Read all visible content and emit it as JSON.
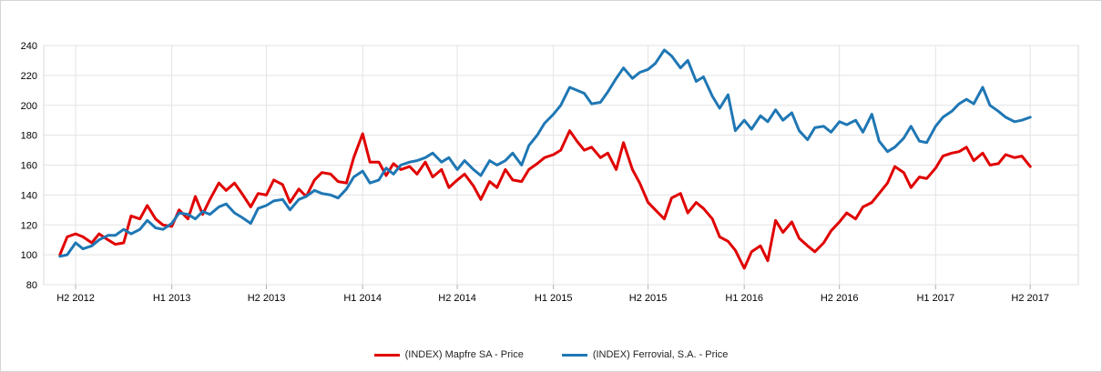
{
  "colors": {
    "series_0": "#e00000",
    "series_1": "#1f77b4",
    "grid": "#e3e3e3",
    "axis": "#b0b0b0"
  },
  "chart_data": {
    "type": "line",
    "title": "",
    "xlabel": "",
    "ylabel": "",
    "ylim": [
      80,
      240
    ],
    "yticks": [
      80,
      100,
      120,
      140,
      160,
      180,
      200,
      220,
      240
    ],
    "xlim": [
      "2012-05-01",
      "2017-10-01"
    ],
    "grid": true,
    "legend": "bottom-center",
    "xticks": [
      {
        "date": "2012-07-01",
        "label": "H2 2012"
      },
      {
        "date": "2013-01-01",
        "label": "H1 2013"
      },
      {
        "date": "2013-07-01",
        "label": "H2 2013"
      },
      {
        "date": "2014-01-01",
        "label": "H1 2014"
      },
      {
        "date": "2014-07-01",
        "label": "H2 2014"
      },
      {
        "date": "2015-01-01",
        "label": "H1 2015"
      },
      {
        "date": "2015-07-01",
        "label": "H2 2015"
      },
      {
        "date": "2016-01-01",
        "label": "H1 2016"
      },
      {
        "date": "2016-07-01",
        "label": "H2 2016"
      },
      {
        "date": "2017-01-01",
        "label": "H1 2017"
      },
      {
        "date": "2017-07-01",
        "label": "H2 2017"
      }
    ],
    "series": [
      {
        "name": "(INDEX) Mapfre SA - Price",
        "color": "#e00000",
        "points": [
          [
            "2012-06-01",
            100
          ],
          [
            "2012-06-15",
            112
          ],
          [
            "2012-07-01",
            114
          ],
          [
            "2012-07-15",
            112
          ],
          [
            "2012-08-01",
            108
          ],
          [
            "2012-08-15",
            114
          ],
          [
            "2012-09-01",
            110
          ],
          [
            "2012-09-15",
            107
          ],
          [
            "2012-10-01",
            108
          ],
          [
            "2012-10-15",
            126
          ],
          [
            "2012-11-01",
            124
          ],
          [
            "2012-11-15",
            133
          ],
          [
            "2012-12-01",
            124
          ],
          [
            "2012-12-15",
            120
          ],
          [
            "2013-01-01",
            119
          ],
          [
            "2013-01-15",
            130
          ],
          [
            "2013-02-01",
            124
          ],
          [
            "2013-02-15",
            139
          ],
          [
            "2013-03-01",
            127
          ],
          [
            "2013-03-15",
            137
          ],
          [
            "2013-04-01",
            148
          ],
          [
            "2013-04-15",
            143
          ],
          [
            "2013-05-01",
            148
          ],
          [
            "2013-05-15",
            141
          ],
          [
            "2013-06-01",
            132
          ],
          [
            "2013-06-15",
            141
          ],
          [
            "2013-07-01",
            140
          ],
          [
            "2013-07-15",
            150
          ],
          [
            "2013-08-01",
            147
          ],
          [
            "2013-08-15",
            135
          ],
          [
            "2013-09-01",
            144
          ],
          [
            "2013-09-15",
            139
          ],
          [
            "2013-10-01",
            150
          ],
          [
            "2013-10-15",
            155
          ],
          [
            "2013-11-01",
            154
          ],
          [
            "2013-11-15",
            149
          ],
          [
            "2013-12-01",
            148
          ],
          [
            "2013-12-15",
            165
          ],
          [
            "2014-01-01",
            181
          ],
          [
            "2014-01-15",
            162
          ],
          [
            "2014-02-01",
            162
          ],
          [
            "2014-02-15",
            153
          ],
          [
            "2014-03-01",
            161
          ],
          [
            "2014-03-15",
            157
          ],
          [
            "2014-04-01",
            159
          ],
          [
            "2014-04-15",
            154
          ],
          [
            "2014-05-01",
            162
          ],
          [
            "2014-05-15",
            152
          ],
          [
            "2014-06-01",
            157
          ],
          [
            "2014-06-15",
            145
          ],
          [
            "2014-07-01",
            150
          ],
          [
            "2014-07-15",
            154
          ],
          [
            "2014-08-01",
            146
          ],
          [
            "2014-08-15",
            137
          ],
          [
            "2014-09-01",
            149
          ],
          [
            "2014-09-15",
            145
          ],
          [
            "2014-10-01",
            157
          ],
          [
            "2014-10-15",
            150
          ],
          [
            "2014-11-01",
            149
          ],
          [
            "2014-11-15",
            157
          ],
          [
            "2014-12-01",
            161
          ],
          [
            "2014-12-15",
            165
          ],
          [
            "2015-01-01",
            167
          ],
          [
            "2015-01-15",
            170
          ],
          [
            "2015-02-01",
            183
          ],
          [
            "2015-02-15",
            176
          ],
          [
            "2015-03-01",
            170
          ],
          [
            "2015-03-15",
            172
          ],
          [
            "2015-04-01",
            165
          ],
          [
            "2015-04-15",
            168
          ],
          [
            "2015-05-01",
            157
          ],
          [
            "2015-05-15",
            175
          ],
          [
            "2015-06-01",
            157
          ],
          [
            "2015-06-15",
            148
          ],
          [
            "2015-07-01",
            135
          ],
          [
            "2015-07-15",
            130
          ],
          [
            "2015-08-01",
            124
          ],
          [
            "2015-08-15",
            138
          ],
          [
            "2015-09-01",
            141
          ],
          [
            "2015-09-15",
            128
          ],
          [
            "2015-10-01",
            135
          ],
          [
            "2015-10-15",
            131
          ],
          [
            "2015-11-01",
            124
          ],
          [
            "2015-11-15",
            112
          ],
          [
            "2015-12-01",
            109
          ],
          [
            "2015-12-15",
            103
          ],
          [
            "2016-01-01",
            91
          ],
          [
            "2016-01-15",
            102
          ],
          [
            "2016-02-01",
            106
          ],
          [
            "2016-02-15",
            96
          ],
          [
            "2016-03-01",
            123
          ],
          [
            "2016-03-15",
            115
          ],
          [
            "2016-04-01",
            122
          ],
          [
            "2016-04-15",
            111
          ],
          [
            "2016-05-01",
            106
          ],
          [
            "2016-05-15",
            102
          ],
          [
            "2016-06-01",
            108
          ],
          [
            "2016-06-15",
            116
          ],
          [
            "2016-07-01",
            122
          ],
          [
            "2016-07-15",
            128
          ],
          [
            "2016-08-01",
            124
          ],
          [
            "2016-08-15",
            132
          ],
          [
            "2016-09-01",
            135
          ],
          [
            "2016-09-15",
            141
          ],
          [
            "2016-10-01",
            148
          ],
          [
            "2016-10-15",
            159
          ],
          [
            "2016-11-01",
            155
          ],
          [
            "2016-11-15",
            145
          ],
          [
            "2016-12-01",
            152
          ],
          [
            "2016-12-15",
            151
          ],
          [
            "2017-01-01",
            158
          ],
          [
            "2017-01-15",
            166
          ],
          [
            "2017-02-01",
            168
          ],
          [
            "2017-02-15",
            169
          ],
          [
            "2017-03-01",
            172
          ],
          [
            "2017-03-15",
            163
          ],
          [
            "2017-04-01",
            168
          ],
          [
            "2017-04-15",
            160
          ],
          [
            "2017-05-01",
            161
          ],
          [
            "2017-05-15",
            167
          ],
          [
            "2017-06-01",
            165
          ],
          [
            "2017-06-15",
            166
          ],
          [
            "2017-07-01",
            159
          ]
        ]
      },
      {
        "name": "(INDEX) Ferrovial, S.A. - Price",
        "color": "#1f77b4",
        "points": [
          [
            "2012-06-01",
            99
          ],
          [
            "2012-06-15",
            100
          ],
          [
            "2012-07-01",
            108
          ],
          [
            "2012-07-15",
            104
          ],
          [
            "2012-08-01",
            106
          ],
          [
            "2012-08-15",
            110
          ],
          [
            "2012-09-01",
            113
          ],
          [
            "2012-09-15",
            113
          ],
          [
            "2012-10-01",
            117
          ],
          [
            "2012-10-15",
            114
          ],
          [
            "2012-11-01",
            117
          ],
          [
            "2012-11-15",
            123
          ],
          [
            "2012-12-01",
            118
          ],
          [
            "2012-12-15",
            117
          ],
          [
            "2013-01-01",
            121
          ],
          [
            "2013-01-15",
            128
          ],
          [
            "2013-02-01",
            127
          ],
          [
            "2013-02-15",
            124
          ],
          [
            "2013-03-01",
            129
          ],
          [
            "2013-03-15",
            127
          ],
          [
            "2013-04-01",
            132
          ],
          [
            "2013-04-15",
            134
          ],
          [
            "2013-05-01",
            128
          ],
          [
            "2013-05-15",
            125
          ],
          [
            "2013-06-01",
            121
          ],
          [
            "2013-06-15",
            131
          ],
          [
            "2013-07-01",
            133
          ],
          [
            "2013-07-15",
            136
          ],
          [
            "2013-08-01",
            137
          ],
          [
            "2013-08-15",
            130
          ],
          [
            "2013-09-01",
            137
          ],
          [
            "2013-09-15",
            139
          ],
          [
            "2013-10-01",
            143
          ],
          [
            "2013-10-15",
            141
          ],
          [
            "2013-11-01",
            140
          ],
          [
            "2013-11-15",
            138
          ],
          [
            "2013-12-01",
            144
          ],
          [
            "2013-12-15",
            152
          ],
          [
            "2014-01-01",
            156
          ],
          [
            "2014-01-15",
            148
          ],
          [
            "2014-02-01",
            150
          ],
          [
            "2014-02-15",
            158
          ],
          [
            "2014-03-01",
            154
          ],
          [
            "2014-03-15",
            160
          ],
          [
            "2014-04-01",
            162
          ],
          [
            "2014-04-15",
            163
          ],
          [
            "2014-05-01",
            165
          ],
          [
            "2014-05-15",
            168
          ],
          [
            "2014-06-01",
            162
          ],
          [
            "2014-06-15",
            165
          ],
          [
            "2014-07-01",
            157
          ],
          [
            "2014-07-15",
            163
          ],
          [
            "2014-08-01",
            157
          ],
          [
            "2014-08-15",
            153
          ],
          [
            "2014-09-01",
            163
          ],
          [
            "2014-09-15",
            160
          ],
          [
            "2014-10-01",
            163
          ],
          [
            "2014-10-15",
            168
          ],
          [
            "2014-11-01",
            160
          ],
          [
            "2014-11-15",
            173
          ],
          [
            "2014-12-01",
            180
          ],
          [
            "2014-12-15",
            188
          ],
          [
            "2015-01-01",
            194
          ],
          [
            "2015-01-15",
            200
          ],
          [
            "2015-02-01",
            212
          ],
          [
            "2015-02-15",
            210
          ],
          [
            "2015-03-01",
            208
          ],
          [
            "2015-03-15",
            201
          ],
          [
            "2015-04-01",
            202
          ],
          [
            "2015-04-15",
            209
          ],
          [
            "2015-05-01",
            218
          ],
          [
            "2015-05-15",
            225
          ],
          [
            "2015-06-01",
            218
          ],
          [
            "2015-06-15",
            222
          ],
          [
            "2015-07-01",
            224
          ],
          [
            "2015-07-15",
            228
          ],
          [
            "2015-08-01",
            237
          ],
          [
            "2015-08-15",
            233
          ],
          [
            "2015-09-01",
            225
          ],
          [
            "2015-09-15",
            230
          ],
          [
            "2015-10-01",
            216
          ],
          [
            "2015-10-15",
            219
          ],
          [
            "2015-11-01",
            206
          ],
          [
            "2015-11-15",
            198
          ],
          [
            "2015-12-01",
            207
          ],
          [
            "2015-12-15",
            183
          ],
          [
            "2016-01-01",
            190
          ],
          [
            "2016-01-15",
            184
          ],
          [
            "2016-02-01",
            193
          ],
          [
            "2016-02-15",
            189
          ],
          [
            "2016-03-01",
            197
          ],
          [
            "2016-03-15",
            190
          ],
          [
            "2016-04-01",
            195
          ],
          [
            "2016-04-15",
            183
          ],
          [
            "2016-05-01",
            177
          ],
          [
            "2016-05-15",
            185
          ],
          [
            "2016-06-01",
            186
          ],
          [
            "2016-06-15",
            182
          ],
          [
            "2016-07-01",
            189
          ],
          [
            "2016-07-15",
            187
          ],
          [
            "2016-08-01",
            190
          ],
          [
            "2016-08-15",
            182
          ],
          [
            "2016-09-01",
            194
          ],
          [
            "2016-09-15",
            176
          ],
          [
            "2016-10-01",
            169
          ],
          [
            "2016-10-15",
            172
          ],
          [
            "2016-11-01",
            178
          ],
          [
            "2016-11-15",
            186
          ],
          [
            "2016-12-01",
            176
          ],
          [
            "2016-12-15",
            175
          ],
          [
            "2017-01-01",
            186
          ],
          [
            "2017-01-15",
            192
          ],
          [
            "2017-02-01",
            196
          ],
          [
            "2017-02-15",
            201
          ],
          [
            "2017-03-01",
            204
          ],
          [
            "2017-03-15",
            201
          ],
          [
            "2017-04-01",
            212
          ],
          [
            "2017-04-15",
            200
          ],
          [
            "2017-05-01",
            196
          ],
          [
            "2017-05-15",
            192
          ],
          [
            "2017-06-01",
            189
          ],
          [
            "2017-06-15",
            190
          ],
          [
            "2017-07-01",
            192
          ]
        ]
      }
    ]
  }
}
